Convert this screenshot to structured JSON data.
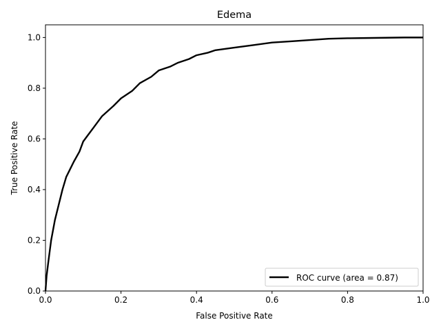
{
  "chart_data": {
    "type": "line",
    "title": "Edema",
    "xlabel": "False Positive Rate",
    "ylabel": "True Positive Rate",
    "xlim": [
      0.0,
      1.0
    ],
    "ylim": [
      0.0,
      1.05
    ],
    "xticks": [
      0.0,
      0.2,
      0.4,
      0.6,
      0.8,
      1.0
    ],
    "xtick_labels": [
      "0.0",
      "0.2",
      "0.4",
      "0.6",
      "0.8",
      "1.0"
    ],
    "yticks": [
      0.0,
      0.2,
      0.4,
      0.6,
      0.8,
      1.0
    ],
    "ytick_labels": [
      "0.0",
      "0.2",
      "0.4",
      "0.6",
      "0.8",
      "1.0"
    ],
    "grid": false,
    "legend_position": "lower-right",
    "series": [
      {
        "name": "ROC curve (area = 0.87)",
        "color": "#000000",
        "x": [
          0.0,
          0.003,
          0.008,
          0.015,
          0.025,
          0.035,
          0.045,
          0.055,
          0.065,
          0.075,
          0.09,
          0.1,
          0.11,
          0.13,
          0.15,
          0.18,
          0.2,
          0.23,
          0.25,
          0.28,
          0.3,
          0.33,
          0.35,
          0.38,
          0.4,
          0.43,
          0.45,
          0.5,
          0.55,
          0.6,
          0.65,
          0.7,
          0.75,
          0.8,
          0.85,
          0.9,
          0.95,
          1.0
        ],
        "y": [
          0.0,
          0.06,
          0.12,
          0.2,
          0.28,
          0.34,
          0.4,
          0.45,
          0.48,
          0.51,
          0.55,
          0.59,
          0.61,
          0.65,
          0.69,
          0.73,
          0.76,
          0.79,
          0.82,
          0.845,
          0.87,
          0.885,
          0.9,
          0.915,
          0.93,
          0.94,
          0.95,
          0.96,
          0.97,
          0.98,
          0.985,
          0.99,
          0.995,
          0.997,
          0.998,
          0.999,
          1.0,
          1.0
        ]
      }
    ]
  }
}
